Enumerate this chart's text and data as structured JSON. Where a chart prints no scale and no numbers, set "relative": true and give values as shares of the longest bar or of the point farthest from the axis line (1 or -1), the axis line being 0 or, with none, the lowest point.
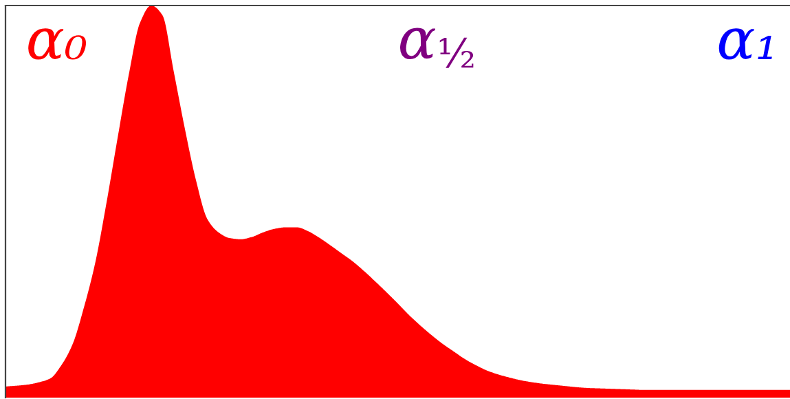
{
  "chart_data": {
    "type": "area",
    "relative": true,
    "categories": [
      null,
      null,
      null,
      null,
      null,
      null,
      null,
      null,
      null,
      null,
      null,
      null,
      null,
      null,
      null,
      null,
      null,
      null,
      null,
      null,
      null,
      null,
      null,
      null,
      null,
      null,
      null,
      null,
      null,
      null,
      null,
      null,
      null,
      null,
      null,
      null,
      null,
      null,
      null,
      null,
      null,
      null,
      null,
      null,
      null,
      null,
      null,
      null,
      null,
      null,
      null,
      null,
      null,
      null,
      null,
      null,
      null,
      null,
      null,
      null,
      null,
      null,
      null,
      null,
      null,
      null,
      null,
      null,
      null,
      null,
      null
    ],
    "series": [
      {
        "name": "α₀",
        "color": "#ff0000",
        "values": [
          0.009,
          0.011,
          0.014,
          0.02,
          0.03,
          0.065,
          0.12,
          0.215,
          0.33,
          0.485,
          0.655,
          0.82,
          0.955,
          1.0,
          0.975,
          0.83,
          0.68,
          0.545,
          0.445,
          0.41,
          0.395,
          0.392,
          0.398,
          0.41,
          0.419,
          0.423,
          0.423,
          0.413,
          0.396,
          0.376,
          0.355,
          0.334,
          0.309,
          0.282,
          0.254,
          0.225,
          0.195,
          0.168,
          0.143,
          0.12,
          0.1,
          0.08,
          0.064,
          0.05,
          0.04,
          0.032,
          0.025,
          0.02,
          0.016,
          0.013,
          0.01,
          0.007,
          0.005,
          0.004,
          0.003,
          0.002,
          0.001,
          0,
          0,
          0,
          0,
          0,
          0,
          0,
          0,
          0,
          0,
          0,
          0,
          0,
          0
        ]
      },
      {
        "name": "α$_{½}$",
        "color": "#800080",
        "values": [
          null,
          null,
          null,
          null,
          null,
          null,
          null,
          null,
          null,
          null,
          null,
          null,
          null,
          null,
          null,
          null,
          null,
          null,
          null,
          null,
          null,
          null,
          null,
          null,
          null,
          null,
          null,
          null,
          null,
          null,
          null,
          null,
          null,
          null,
          null,
          null,
          null,
          null,
          null,
          null,
          null,
          null,
          null,
          null,
          null,
          null,
          null,
          null,
          null,
          null,
          null,
          null,
          null,
          null,
          null,
          null,
          null,
          null,
          null,
          null,
          null,
          null,
          null,
          null,
          null,
          null,
          null,
          null,
          null,
          null,
          null
        ]
      },
      {
        "name": "α₁",
        "color": "#0000ff",
        "values": [
          null,
          null,
          null,
          null,
          null,
          null,
          null,
          null,
          null,
          null,
          null,
          null,
          null,
          null,
          null,
          null,
          null,
          null,
          null,
          null,
          null,
          null,
          null,
          null,
          null,
          null,
          null,
          null,
          null,
          null,
          null,
          null,
          null,
          null,
          null,
          null,
          null,
          null,
          null,
          null,
          null,
          null,
          null,
          null,
          null,
          null,
          null,
          null,
          null,
          null,
          null,
          null,
          null,
          null,
          null,
          null,
          null,
          null,
          null,
          null,
          null,
          null,
          null,
          null,
          null,
          null,
          null,
          null,
          null,
          null,
          null
        ]
      }
    ]
  }
}
